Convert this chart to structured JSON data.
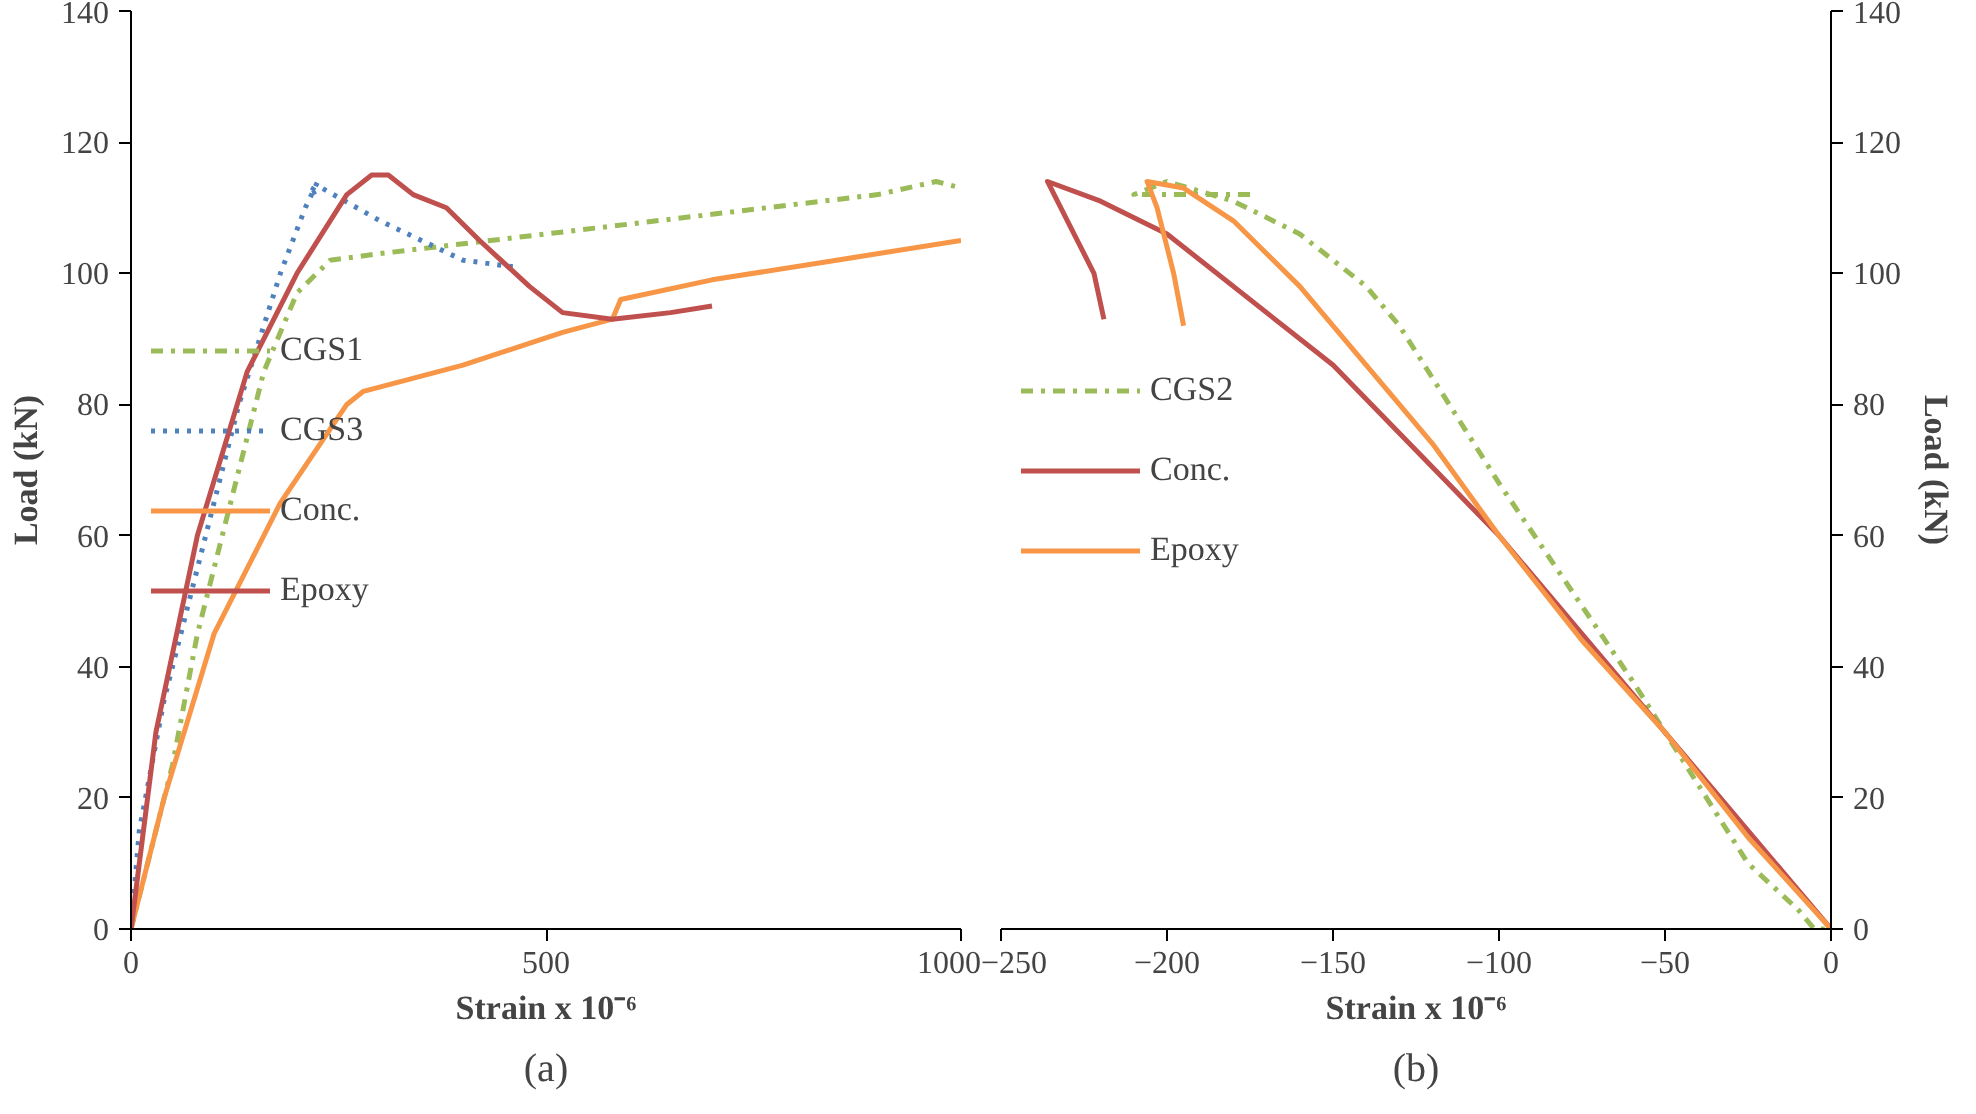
{
  "chart_data": [
    {
      "type": "line",
      "xlabel": "Strain x 10⁻⁶",
      "ylabel": "Load (kN)",
      "annotations": [
        "(a)"
      ],
      "xlim": [
        0,
        1000
      ],
      "xticks": [
        0,
        500,
        1000
      ],
      "ylim": [
        0,
        140
      ],
      "yticks": [
        0,
        20,
        40,
        60,
        80,
        100,
        120,
        140
      ],
      "legend": "left",
      "grid": false,
      "series": [
        {
          "name": "CGS1",
          "color": "#9bbb59",
          "line_style": "dashdot",
          "x": [
            0,
            20,
            50,
            80,
            120,
            160,
            200,
            240,
            300,
            500,
            700,
            900,
            970,
            1000
          ],
          "values": [
            0,
            10,
            25,
            45,
            65,
            85,
            97,
            102,
            103,
            106,
            109,
            112,
            114,
            113
          ]
        },
        {
          "name": "CGS3",
          "color": "#4f81bd",
          "line_style": "dotted",
          "x": [
            0,
            10,
            40,
            80,
            130,
            180,
            210,
            225,
            215,
            230,
            300,
            400,
            460
          ],
          "values": [
            0,
            15,
            35,
            55,
            80,
            100,
            110,
            114,
            112,
            113,
            108,
            102,
            101
          ]
        },
        {
          "name": "Conc.",
          "color": "#f79646",
          "line_style": "solid",
          "x": [
            0,
            40,
            100,
            180,
            260,
            280,
            400,
            520,
            580,
            590,
            700,
            850,
            1000
          ],
          "values": [
            0,
            20,
            45,
            65,
            80,
            82,
            86,
            91,
            93,
            96,
            99,
            102,
            105
          ]
        },
        {
          "name": "Epoxy",
          "color": "#c0504d",
          "line_style": "solid",
          "x": [
            0,
            30,
            80,
            140,
            200,
            260,
            290,
            310,
            340,
            380,
            420,
            480,
            520,
            580,
            650,
            700
          ],
          "values": [
            0,
            30,
            60,
            85,
            100,
            112,
            115,
            115,
            112,
            110,
            105,
            98,
            94,
            93,
            94,
            95
          ]
        }
      ]
    },
    {
      "type": "line",
      "xlabel": "Strain x 10⁻⁶",
      "ylabel": "Load (kN)",
      "annotations": [
        "(b)"
      ],
      "xlim": [
        -250,
        0
      ],
      "xticks": [
        -250,
        -200,
        -150,
        -100,
        -50,
        0
      ],
      "ylim": [
        0,
        140
      ],
      "yticks": [
        0,
        20,
        40,
        60,
        80,
        100,
        120,
        140
      ],
      "legend": "left",
      "grid": false,
      "series": [
        {
          "name": "CGS2",
          "color": "#9bbb59",
          "line_style": "dashdot",
          "x": [
            -175,
            -210,
            -200,
            -180,
            -160,
            -140,
            -130,
            -120,
            -110,
            -100,
            -80,
            -60,
            -40,
            -25,
            -10,
            -5,
            0
          ],
          "values": [
            112,
            112,
            114,
            111,
            106,
            98,
            92,
            84,
            76,
            68,
            53,
            38,
            22,
            10,
            3,
            0,
            0
          ]
        },
        {
          "name": "Conc.",
          "color": "#c0504d",
          "line_style": "solid",
          "x": [
            -219,
            -222,
            -230,
            -236,
            -220,
            -200,
            -150,
            -100,
            -50,
            0
          ],
          "values": [
            93,
            100,
            108,
            114,
            111,
            106,
            86,
            60,
            30,
            0
          ]
        },
        {
          "name": "Epoxy",
          "color": "#f79646",
          "line_style": "solid",
          "x": [
            -195,
            -198,
            -203,
            -206,
            -195,
            -180,
            -160,
            -140,
            -120,
            -100,
            -75,
            -50,
            -25,
            0
          ],
          "values": [
            92,
            100,
            110,
            114,
            113,
            108,
            98,
            86,
            74,
            60,
            44,
            30,
            14,
            0
          ]
        }
      ]
    }
  ]
}
